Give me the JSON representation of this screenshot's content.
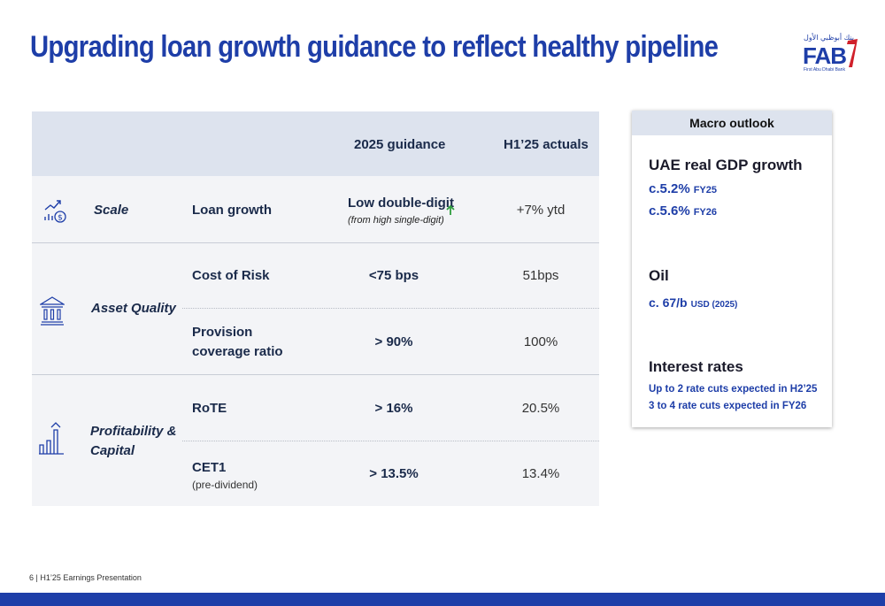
{
  "title": "Upgrading loan growth guidance to reflect healthy pipeline",
  "logo": {
    "arabic": "بنك أبوظبي الأول",
    "name": "FAB",
    "subtitle": "First Abu Dhabi Bank"
  },
  "table": {
    "headers": {
      "guidance": "2025 guidance",
      "actuals": "H1’25 actuals"
    },
    "categories": {
      "scale": "Scale",
      "asset_quality": "Asset Quality",
      "profitability_line1": "Profitability &",
      "profitability_line2": "Capital"
    },
    "rows": {
      "loan_growth": {
        "metric": "Loan growth",
        "guidance": "Low double-digit",
        "guidance_note": "(from high single-digit)",
        "actual": "+7% ytd"
      },
      "cost_of_risk": {
        "metric": "Cost of Risk",
        "guidance": "<75 bps",
        "actual": "51bps"
      },
      "provision": {
        "metric_line1": "Provision",
        "metric_line2": "coverage ratio",
        "guidance": "> 90%",
        "actual": "100%"
      },
      "rote": {
        "metric": "RoTE",
        "guidance": "> 16%",
        "actual": "20.5%"
      },
      "cet1": {
        "metric": "CET1",
        "metric_note": "(pre-dividend)",
        "guidance": "> 13.5%",
        "actual": "13.4%"
      }
    }
  },
  "macro": {
    "header": "Macro outlook",
    "gdp": {
      "heading": "UAE real GDP growth",
      "v1": "c.5.2%",
      "v1_unit": "FY25",
      "v2": "c.5.6%",
      "v2_unit": "FY26"
    },
    "oil": {
      "heading": "Oil",
      "value": "c. 67/b",
      "unit": "USD (2025)"
    },
    "rates": {
      "heading": "Interest rates",
      "line1": "Up to 2 rate cuts expected in H2’25",
      "line2": "3 to 4 rate cuts expected in FY26"
    }
  },
  "footer": "6  |  H1’25 Earnings Presentation",
  "colors": {
    "brand_blue": "#1e3ea8",
    "header_bg": "#dde3ee",
    "table_bg": "#f3f4f7",
    "up_arrow": "#2e9e3e"
  }
}
